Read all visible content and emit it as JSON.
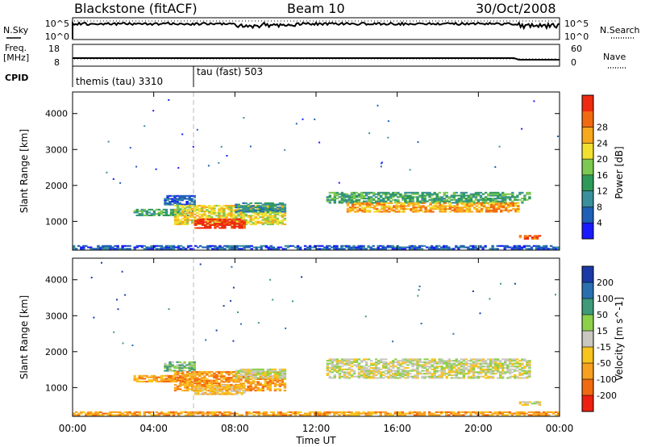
{
  "header": {
    "station": "Blackstone (fitACF)",
    "beam": "Beam 10",
    "date": "30/Oct/2008"
  },
  "noise_panel": {
    "left_label": "N.Sky",
    "right_label": "N.Search",
    "left_ticks": [
      "10^5",
      "10^0"
    ],
    "right_ticks": [
      "10^5",
      "10^0"
    ]
  },
  "freq_panel": {
    "left_label_1": "Freq.",
    "left_label_2": "[MHz]",
    "left_ticks": [
      "18",
      "8"
    ],
    "right_label": "Nave",
    "right_ticks": [
      "60",
      "0"
    ]
  },
  "cpid_panel": {
    "label": "CPID",
    "modes": [
      {
        "name": "themis (tau) 3310",
        "start_hour": 0
      },
      {
        "name": "tau (fast) 503",
        "start_hour": 6
      }
    ]
  },
  "chart_data": [
    {
      "type": "heatmap",
      "title": "",
      "xlabel": "Time UT",
      "ylabel": "Slant Range [km]",
      "x_ticks": [
        "00:00",
        "04:00",
        "08:00",
        "12:00",
        "16:00",
        "20:00",
        "00:00"
      ],
      "xlim_hours": [
        0,
        24
      ],
      "y_ticks": [
        "1000",
        "2000",
        "3000",
        "4000"
      ],
      "ylim": [
        200,
        4600
      ],
      "colorbar": {
        "label": "Power [dB]",
        "ticks": [
          "4",
          "8",
          "12",
          "16",
          "20",
          "24",
          "28"
        ],
        "colors": [
          "#1a1aff",
          "#1e5fb8",
          "#3a8f9c",
          "#2e9a5a",
          "#7cc850",
          "#f2e030",
          "#f8a81e",
          "#f26a10",
          "#ee2a10"
        ]
      },
      "regions": [
        {
          "t": [
            3.0,
            6.0
          ],
          "r": [
            1150,
            1350
          ],
          "level": 3
        },
        {
          "t": [
            4.5,
            6.0
          ],
          "r": [
            1450,
            1700
          ],
          "level": 1
        },
        {
          "t": [
            5.0,
            10.5
          ],
          "r": [
            900,
            1450
          ],
          "level": 5
        },
        {
          "t": [
            6.0,
            8.5
          ],
          "r": [
            800,
            1050
          ],
          "level": 8
        },
        {
          "t": [
            8.0,
            10.5
          ],
          "r": [
            1250,
            1500
          ],
          "level": 2
        },
        {
          "t": [
            12.5,
            22.5
          ],
          "r": [
            1500,
            1800
          ],
          "level": 3
        },
        {
          "t": [
            13.5,
            22.0
          ],
          "r": [
            1250,
            1500
          ],
          "level": 6
        },
        {
          "t": [
            22.0,
            23.0
          ],
          "r": [
            500,
            600
          ],
          "level": 7
        },
        {
          "t": [
            0.0,
            24.0
          ],
          "r": [
            220,
            320
          ],
          "level": 1
        }
      ]
    },
    {
      "type": "heatmap",
      "title": "",
      "xlabel": "Time UT",
      "ylabel": "Slant Range [km]",
      "x_ticks": [
        "00:00",
        "04:00",
        "08:00",
        "12:00",
        "16:00",
        "20:00",
        "00:00"
      ],
      "xlim_hours": [
        0,
        24
      ],
      "y_ticks": [
        "1000",
        "2000",
        "3000",
        "4000"
      ],
      "ylim": [
        200,
        4600
      ],
      "colorbar": {
        "label": "Velocity [m s^-1]",
        "ticks": [
          "200",
          "100",
          "50",
          "15",
          "-15",
          "-50",
          "-100",
          "-200"
        ],
        "colors": [
          "#1a3aa8",
          "#2a6fb0",
          "#3e9a78",
          "#8cd04a",
          "#c8c8c0",
          "#f8c41e",
          "#f8a020",
          "#f26a10",
          "#ee2010"
        ]
      },
      "regions": [
        {
          "t": [
            3.0,
            6.0
          ],
          "r": [
            1150,
            1350
          ],
          "level": 6
        },
        {
          "t": [
            4.5,
            6.0
          ],
          "r": [
            1450,
            1700
          ],
          "level": 3
        },
        {
          "t": [
            5.0,
            10.5
          ],
          "r": [
            900,
            1450
          ],
          "level": 6
        },
        {
          "t": [
            6.0,
            8.5
          ],
          "r": [
            800,
            1050
          ],
          "level": 5
        },
        {
          "t": [
            8.0,
            10.5
          ],
          "r": [
            1250,
            1500
          ],
          "level": 4
        },
        {
          "t": [
            12.5,
            22.5
          ],
          "r": [
            1250,
            1800
          ],
          "level": 4
        },
        {
          "t": [
            22.0,
            23.0
          ],
          "r": [
            500,
            600
          ],
          "level": 4
        },
        {
          "t": [
            0.0,
            24.0
          ],
          "r": [
            220,
            320
          ],
          "level": 6
        }
      ]
    }
  ]
}
